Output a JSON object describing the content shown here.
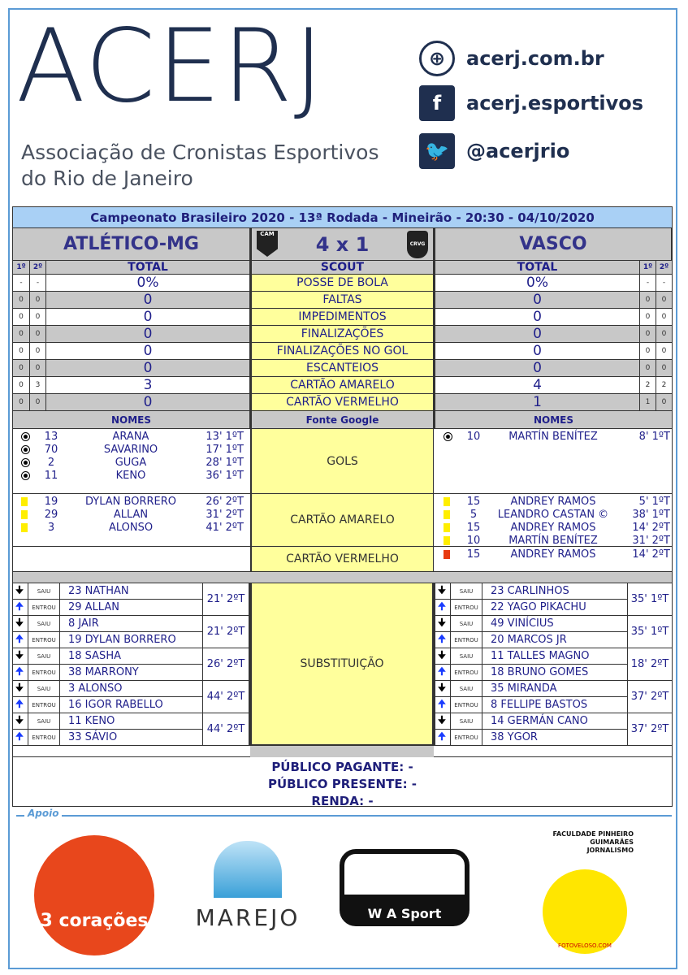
{
  "header": {
    "logo": "ACERJ",
    "org_line1": "Associação de Cronistas Esportivos",
    "org_line2": "do Rio de Janeiro",
    "social": [
      {
        "icon": "globe-icon",
        "text": "acerj.com.br"
      },
      {
        "icon": "facebook-icon",
        "text": "acerj.esportivos"
      },
      {
        "icon": "twitter-icon",
        "text": "@acerjrio"
      }
    ]
  },
  "match": {
    "title": "Campeonato Brasileiro 2020 - 13ª Rodada - Mineirão - 20:30 - 04/10/2020",
    "home": "ATLÉTICO-MG",
    "away": "VASCO",
    "score": "4 x 1",
    "home_crest": "CAM",
    "away_crest": "CRVG"
  },
  "columns": {
    "first": "1º",
    "second": "2º",
    "total": "TOTAL",
    "scout": "SCOUT",
    "names": "NOMES",
    "source": "Fonte Google"
  },
  "stats": [
    {
      "label": "POSSE DE BOLA",
      "home1": "-",
      "home2": "-",
      "home": "0%",
      "away": "0%",
      "away1": "-",
      "away2": "-"
    },
    {
      "label": "FALTAS",
      "home1": "0",
      "home2": "0",
      "home": "0",
      "away": "0",
      "away1": "0",
      "away2": "0"
    },
    {
      "label": "IMPEDIMENTOS",
      "home1": "0",
      "home2": "0",
      "home": "0",
      "away": "0",
      "away1": "0",
      "away2": "0"
    },
    {
      "label": "FINALIZAÇÕES",
      "home1": "0",
      "home2": "0",
      "home": "0",
      "away": "0",
      "away1": "0",
      "away2": "0"
    },
    {
      "label": "FINALIZAÇÕES NO GOL",
      "home1": "0",
      "home2": "0",
      "home": "0",
      "away": "0",
      "away1": "0",
      "away2": "0"
    },
    {
      "label": "ESCANTEIOS",
      "home1": "0",
      "home2": "0",
      "home": "0",
      "away": "0",
      "away1": "0",
      "away2": "0"
    },
    {
      "label": "CARTÃO AMARELO",
      "home1": "0",
      "home2": "3",
      "home": "3",
      "away": "4",
      "away1": "2",
      "away2": "2"
    },
    {
      "label": "CARTÃO VERMELHO",
      "home1": "0",
      "home2": "0",
      "home": "0",
      "away": "1",
      "away1": "1",
      "away2": "0"
    }
  ],
  "events": {
    "goals_label": "GOLS",
    "yellow_label": "CARTÃO AMARELO",
    "red_label": "CARTÃO VERMELHO",
    "home_goals": [
      {
        "n": "13",
        "name": "ARANA",
        "time": "13' 1ºT"
      },
      {
        "n": "70",
        "name": "SAVARINO",
        "time": "17' 1ºT"
      },
      {
        "n": "2",
        "name": "GUGA",
        "time": "28' 1ºT"
      },
      {
        "n": "11",
        "name": "KENO",
        "time": "36' 1ºT"
      }
    ],
    "away_goals": [
      {
        "n": "10",
        "name": "MARTÍN BENÍTEZ",
        "time": "8' 1ºT"
      }
    ],
    "home_yellow": [
      {
        "n": "19",
        "name": "DYLAN BORRERO",
        "time": "26' 2ºT"
      },
      {
        "n": "29",
        "name": "ALLAN",
        "time": "31' 2ºT"
      },
      {
        "n": "3",
        "name": "ALONSO",
        "time": "41' 2ºT"
      }
    ],
    "away_yellow": [
      {
        "n": "15",
        "name": "ANDREY RAMOS",
        "time": "5' 1ºT"
      },
      {
        "n": "5",
        "name": "LEANDRO CASTAN ©",
        "time": "38' 1ºT"
      },
      {
        "n": "15",
        "name": "ANDREY RAMOS",
        "time": "14' 2ºT"
      },
      {
        "n": "10",
        "name": "MARTÍN BENÍTEZ",
        "time": "31' 2ºT"
      }
    ],
    "home_red": [],
    "away_red": [
      {
        "n": "15",
        "name": "ANDREY RAMOS",
        "time": "14' 2ºT"
      }
    ]
  },
  "subs": {
    "label": "SUBSTITUIÇÃO",
    "out": "SAIU",
    "in": "ENTROU",
    "home": [
      {
        "out": "23  NATHAN",
        "in": "29  ALLAN",
        "time": "21' 2ºT"
      },
      {
        "out": "8  JAIR",
        "in": "19  DYLAN BORRERO",
        "time": "21' 2ºT"
      },
      {
        "out": "18  SASHA",
        "in": "38  MARRONY",
        "time": "26' 2ºT"
      },
      {
        "out": "3  ALONSO",
        "in": "16  IGOR RABELLO",
        "time": "44' 2ºT"
      },
      {
        "out": "11  KENO",
        "in": "33  SÁVIO",
        "time": "44' 2ºT"
      }
    ],
    "away": [
      {
        "out": "23  CARLINHOS",
        "in": "22  YAGO PIKACHU",
        "time": "35' 1ºT"
      },
      {
        "out": "49  VINÍCIUS",
        "in": "20  MARCOS JR",
        "time": "35' 1ºT"
      },
      {
        "out": "11  TALLES MAGNO",
        "in": "18  BRUNO GOMES",
        "time": "18' 2ºT"
      },
      {
        "out": "35  MIRANDA",
        "in": "8  FELLIPE BASTOS",
        "time": "37' 2ºT"
      },
      {
        "out": "14  GERMÁN CANO",
        "in": "38  YGOR",
        "time": "37' 2ºT"
      }
    ]
  },
  "public": {
    "paying": "PÚBLICO PAGANTE: -",
    "present": "PÚBLICO PRESENTE: -",
    "income": "RENDA:  -"
  },
  "sponsors": {
    "label": "Apoio",
    "items": [
      "3 corações",
      "MAREJO",
      "W A Sport",
      "FACULDADE PINHEIRO GUIMARÃES JORNALISMO",
      "FOTOVELOSO.COM"
    ]
  },
  "colors": {
    "navy": "#1f1f8a",
    "yellow": "#ffff9c",
    "title_bar": "#a9d0f5",
    "gray": "#c8c8c8",
    "frame": "#5b9bd5"
  }
}
